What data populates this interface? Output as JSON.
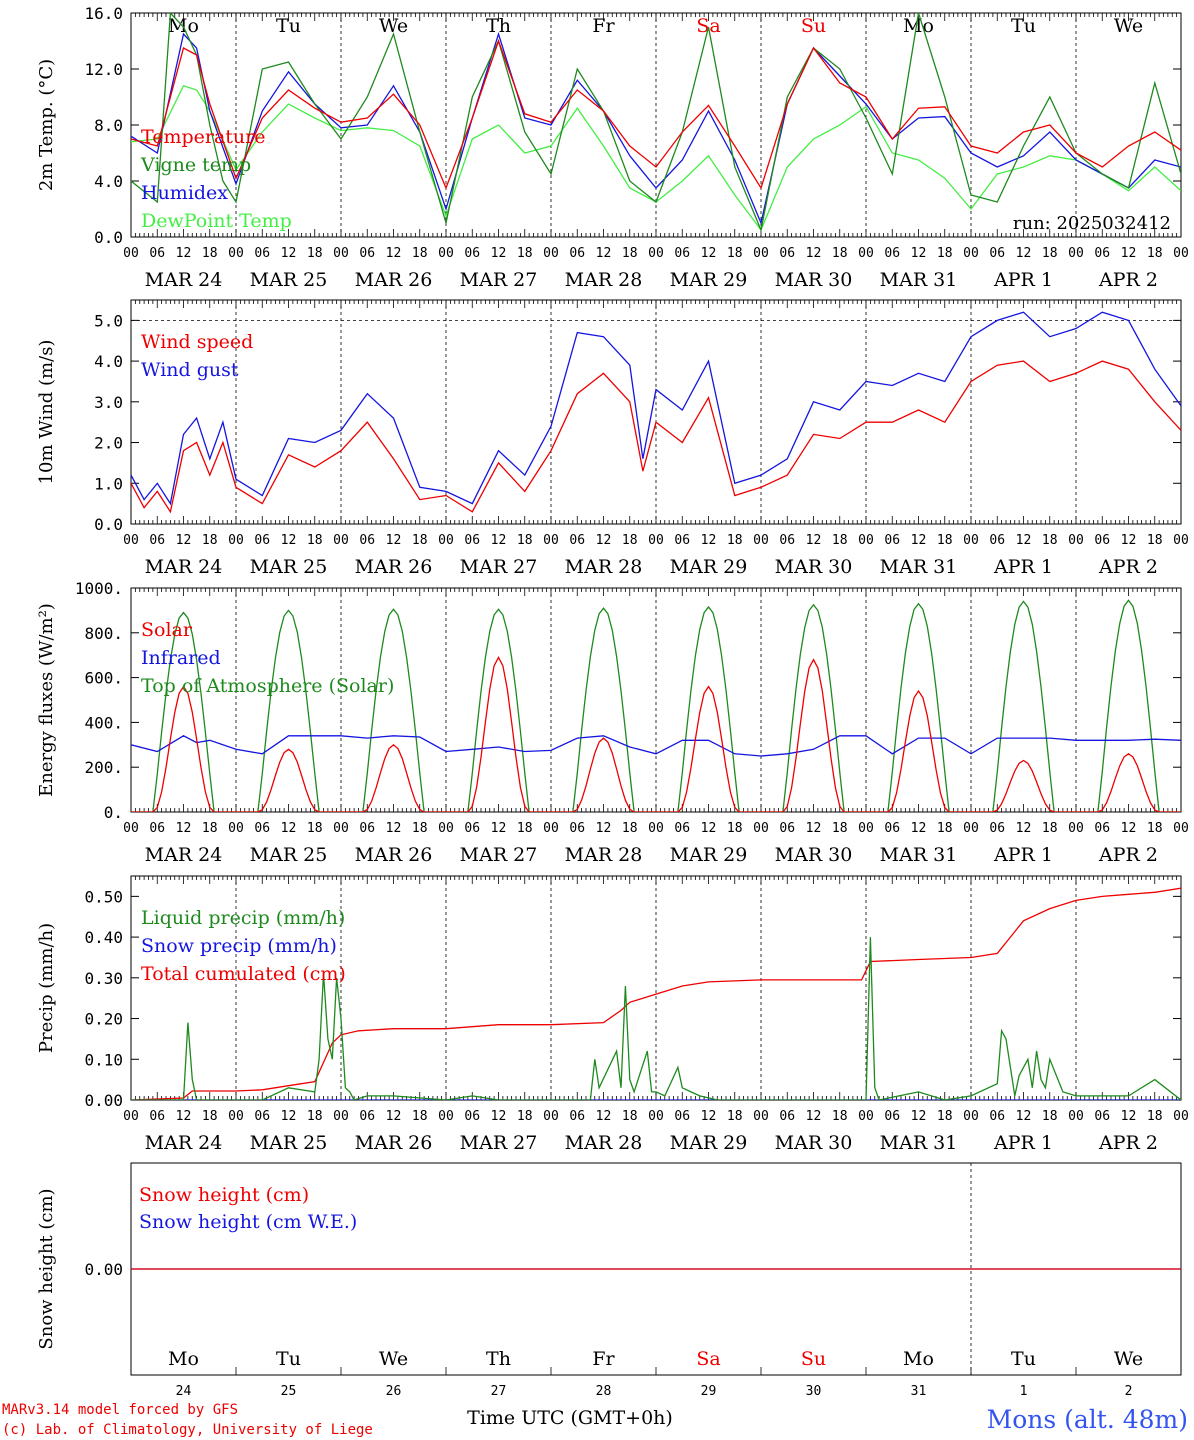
{
  "colors": {
    "red": "#ee0000",
    "darkgreen": "#1e8a1e",
    "blue": "#1515e0",
    "lightgreen": "#44ee44",
    "grid": "#000000",
    "station": "#3355ee"
  },
  "days": [
    {
      "label": "Mo",
      "weekend": false
    },
    {
      "label": "Tu",
      "weekend": false
    },
    {
      "label": "We",
      "weekend": false
    },
    {
      "label": "Th",
      "weekend": false
    },
    {
      "label": "Fr",
      "weekend": false
    },
    {
      "label": "Sa",
      "weekend": true
    },
    {
      "label": "Su",
      "weekend": true
    },
    {
      "label": "Mo",
      "weekend": false
    },
    {
      "label": "Tu",
      "weekend": false
    },
    {
      "label": "We",
      "weekend": false
    }
  ],
  "dates": [
    "MAR 24",
    "MAR 25",
    "MAR 26",
    "MAR 27",
    "MAR 28",
    "MAR 29",
    "MAR 30",
    "MAR 31",
    "APR  1",
    "APR  2"
  ],
  "date_numbers": [
    "24",
    "25",
    "26",
    "27",
    "28",
    "29",
    "30",
    "31",
    "1",
    "2"
  ],
  "hour_labels": [
    "00",
    "06",
    "12",
    "18"
  ],
  "footer": {
    "credit1": "MARv3.14 model forced by GFS",
    "credit2": "(c) Lab. of Climatology, University of Liege",
    "xlabel": "Time UTC (GMT+0h)",
    "station": "Mons (alt. 48m)"
  },
  "chart_data": [
    {
      "id": "temp",
      "type": "line",
      "ylabel": "2m Temp. (°C)",
      "ylim": [
        0,
        16
      ],
      "yticks": [
        "0.0",
        "4.0",
        "8.0",
        "12.0",
        "16.0"
      ],
      "ytick_values": [
        0,
        4,
        8,
        12,
        16
      ],
      "annotation": "run: 2025032412",
      "show_days": true,
      "x_unit": "hours since MAR 24 00 UTC",
      "series": [
        {
          "name": "Temperature",
          "color": "red",
          "x": [
            0,
            6,
            12,
            15,
            18,
            24,
            30,
            36,
            42,
            48,
            54,
            60,
            66,
            72,
            78,
            84,
            90,
            96,
            102,
            108,
            114,
            120,
            126,
            132,
            138,
            144,
            150,
            156,
            162,
            168,
            174,
            180,
            186,
            192,
            198,
            204,
            210,
            216,
            222,
            228,
            234,
            240
          ],
          "y": [
            7.0,
            6.5,
            13.5,
            13.0,
            9.5,
            4.2,
            8.5,
            10.5,
            9.2,
            8.2,
            8.5,
            10.2,
            8.0,
            3.5,
            8.5,
            14.0,
            8.8,
            8.2,
            10.5,
            9.0,
            6.5,
            5.0,
            7.5,
            9.4,
            6.5,
            3.5,
            9.5,
            13.5,
            11.0,
            10.0,
            7.0,
            9.2,
            9.3,
            6.5,
            6.0,
            7.5,
            8.0,
            6.0,
            5.0,
            6.5,
            7.5,
            6.2
          ]
        },
        {
          "name": "Vigne temp",
          "color": "darkgreen",
          "x": [
            0,
            6,
            9,
            12,
            15,
            18,
            21,
            24,
            30,
            36,
            42,
            48,
            54,
            60,
            66,
            72,
            78,
            84,
            90,
            96,
            102,
            108,
            114,
            120,
            126,
            132,
            138,
            144,
            150,
            156,
            162,
            168,
            174,
            180,
            186,
            192,
            198,
            204,
            210,
            216,
            222,
            228,
            234,
            240
          ],
          "y": [
            4.0,
            2.5,
            16.0,
            15.0,
            13.0,
            8.0,
            4.0,
            2.5,
            12.0,
            12.5,
            9.5,
            7.0,
            10.0,
            14.5,
            7.5,
            1.0,
            10.0,
            14.0,
            7.5,
            4.5,
            12.0,
            9.0,
            4.0,
            2.5,
            7.5,
            15.0,
            5.0,
            0.5,
            10.0,
            13.5,
            12.0,
            8.5,
            4.5,
            16.0,
            10.0,
            3.0,
            2.5,
            6.5,
            10.0,
            6.0,
            4.5,
            3.5,
            11.0,
            4.5
          ]
        },
        {
          "name": "Humidex",
          "color": "blue",
          "x": [
            0,
            6,
            12,
            15,
            18,
            24,
            30,
            36,
            42,
            48,
            54,
            60,
            66,
            72,
            78,
            84,
            90,
            96,
            102,
            108,
            114,
            120,
            126,
            132,
            138,
            144,
            150,
            156,
            162,
            168,
            174,
            180,
            186,
            192,
            198,
            204,
            210,
            216,
            222,
            228,
            234,
            240
          ],
          "y": [
            7.2,
            6.0,
            14.5,
            13.5,
            9.0,
            3.8,
            9.0,
            11.8,
            9.5,
            7.8,
            8.0,
            10.8,
            7.5,
            2.0,
            8.5,
            14.5,
            8.5,
            8.0,
            11.2,
            9.0,
            5.8,
            3.5,
            5.5,
            9.0,
            5.5,
            1.0,
            9.5,
            13.5,
            11.5,
            9.5,
            7.0,
            8.5,
            8.6,
            6.0,
            5.0,
            5.8,
            7.5,
            5.5,
            4.5,
            3.5,
            5.5,
            5.0
          ]
        },
        {
          "name": "DewPoint Temp",
          "color": "lightgreen",
          "x": [
            0,
            6,
            12,
            15,
            18,
            24,
            30,
            36,
            42,
            48,
            54,
            60,
            66,
            72,
            78,
            84,
            90,
            96,
            102,
            108,
            114,
            120,
            126,
            132,
            138,
            144,
            150,
            156,
            162,
            168,
            174,
            180,
            186,
            192,
            198,
            204,
            210,
            216,
            222,
            228,
            234,
            240
          ],
          "y": [
            6.8,
            7.0,
            10.8,
            10.5,
            9.0,
            4.8,
            7.5,
            9.5,
            8.5,
            7.6,
            7.8,
            7.6,
            6.5,
            1.5,
            7.0,
            8.0,
            6.0,
            6.5,
            9.2,
            6.5,
            3.5,
            2.5,
            4.0,
            5.8,
            3.0,
            0.5,
            5.0,
            7.0,
            8.0,
            9.3,
            6.0,
            5.5,
            4.2,
            2.0,
            4.5,
            5.0,
            5.8,
            5.5,
            4.5,
            3.3,
            5.0,
            3.3
          ]
        }
      ]
    },
    {
      "id": "wind",
      "type": "line",
      "ylabel": "10m Wind (m/s)",
      "ylim": [
        0,
        5.5
      ],
      "yticks": [
        "0.0",
        "1.0",
        "2.0",
        "3.0",
        "4.0",
        "5.0"
      ],
      "ytick_values": [
        0,
        1,
        2,
        3,
        4,
        5
      ],
      "dashed_at": 5.0,
      "series": [
        {
          "name": "Wind speed",
          "color": "red",
          "x": [
            0,
            3,
            6,
            9,
            12,
            15,
            18,
            21,
            24,
            30,
            36,
            42,
            48,
            54,
            60,
            66,
            72,
            78,
            84,
            90,
            96,
            102,
            108,
            114,
            117,
            120,
            126,
            132,
            138,
            144,
            150,
            156,
            162,
            168,
            174,
            180,
            186,
            192,
            198,
            204,
            210,
            216,
            222,
            228,
            234,
            240
          ],
          "y": [
            1.0,
            0.4,
            0.8,
            0.3,
            1.8,
            2.0,
            1.2,
            2.0,
            0.9,
            0.5,
            1.7,
            1.4,
            1.8,
            2.5,
            1.6,
            0.6,
            0.7,
            0.3,
            1.5,
            0.8,
            1.8,
            3.2,
            3.7,
            3.0,
            1.3,
            2.5,
            2.0,
            3.1,
            0.7,
            0.9,
            1.2,
            2.2,
            2.1,
            2.5,
            2.5,
            2.8,
            2.5,
            3.5,
            3.9,
            4.0,
            3.5,
            3.7,
            4.0,
            3.8,
            3.0,
            2.3
          ]
        },
        {
          "name": "Wind gust",
          "color": "blue",
          "x": [
            0,
            3,
            6,
            9,
            12,
            15,
            18,
            21,
            24,
            30,
            36,
            42,
            48,
            54,
            60,
            66,
            72,
            78,
            84,
            90,
            96,
            102,
            108,
            114,
            117,
            120,
            126,
            132,
            138,
            144,
            150,
            156,
            162,
            168,
            174,
            180,
            186,
            192,
            198,
            204,
            210,
            216,
            222,
            228,
            234,
            240
          ],
          "y": [
            1.2,
            0.6,
            1.0,
            0.5,
            2.2,
            2.6,
            1.6,
            2.5,
            1.1,
            0.7,
            2.1,
            2.0,
            2.3,
            3.2,
            2.6,
            0.9,
            0.8,
            0.5,
            1.8,
            1.2,
            2.4,
            4.7,
            4.6,
            3.9,
            1.6,
            3.3,
            2.8,
            4.0,
            1.0,
            1.2,
            1.6,
            3.0,
            2.8,
            3.5,
            3.4,
            3.7,
            3.5,
            4.6,
            5.0,
            5.2,
            4.6,
            4.8,
            5.2,
            5.0,
            3.8,
            2.9
          ]
        }
      ]
    },
    {
      "id": "energy",
      "type": "line",
      "ylabel": "Energy fluxes (W/m²)",
      "ylim": [
        0,
        1000
      ],
      "yticks": [
        "0.",
        "200.",
        "400.",
        "600.",
        "800.",
        "1000."
      ],
      "ytick_values": [
        0,
        200,
        400,
        600,
        800,
        1000
      ],
      "toa_peaks": [
        890,
        900,
        905,
        905,
        910,
        915,
        925,
        930,
        940,
        945
      ],
      "solar_peaks": [
        560,
        280,
        300,
        690,
        330,
        560,
        680,
        540,
        230,
        260
      ],
      "series": [
        {
          "name": "Solar",
          "color": "red",
          "daily_peaks": "solar_peaks"
        },
        {
          "name": "Infrared",
          "color": "blue",
          "x": [
            0,
            6,
            12,
            15,
            18,
            24,
            30,
            36,
            42,
            48,
            54,
            60,
            66,
            72,
            78,
            84,
            90,
            96,
            102,
            108,
            114,
            120,
            126,
            132,
            138,
            144,
            150,
            156,
            162,
            168,
            174,
            180,
            186,
            192,
            198,
            204,
            210,
            216,
            222,
            228,
            234,
            240
          ],
          "y": [
            300,
            270,
            340,
            310,
            320,
            280,
            260,
            340,
            340,
            340,
            330,
            340,
            335,
            270,
            280,
            290,
            270,
            275,
            330,
            340,
            290,
            260,
            320,
            320,
            260,
            250,
            260,
            280,
            340,
            340,
            260,
            330,
            330,
            260,
            330,
            330,
            330,
            320,
            320,
            320,
            325,
            320
          ]
        },
        {
          "name": "Top of Atmosphere (Solar)",
          "color": "darkgreen",
          "daily_peaks": "toa_peaks"
        }
      ]
    },
    {
      "id": "precip",
      "type": "line",
      "ylabel": "Precip (mm/h)",
      "ylim": [
        0,
        0.55
      ],
      "yticks": [
        "0.00",
        "0.10",
        "0.20",
        "0.30",
        "0.40",
        "0.50"
      ],
      "ytick_values": [
        0,
        0.1,
        0.2,
        0.3,
        0.4,
        0.5
      ],
      "series": [
        {
          "name": "Liquid precip (mm/h)",
          "color": "darkgreen",
          "x": [
            0,
            12,
            13,
            14,
            15,
            16,
            30,
            36,
            42,
            43,
            44,
            45,
            46,
            47,
            48,
            49,
            50,
            51,
            54,
            60,
            72,
            78,
            84,
            96,
            105,
            106,
            107,
            111,
            112,
            113,
            114,
            115,
            118,
            119,
            120,
            122,
            125,
            126,
            128,
            130,
            134,
            168,
            169,
            170,
            171,
            180,
            186,
            192,
            198,
            199,
            200,
            202,
            203,
            205,
            206,
            207,
            208,
            209,
            210,
            213,
            216,
            228,
            234,
            240
          ],
          "y": [
            0,
            0,
            0.19,
            0.05,
            0,
            0,
            0,
            0.03,
            0.02,
            0.1,
            0.31,
            0.15,
            0.1,
            0.3,
            0.2,
            0.03,
            0.02,
            0,
            0.01,
            0.01,
            0,
            0.01,
            0,
            0,
            0,
            0.1,
            0.03,
            0.12,
            0.03,
            0.28,
            0.05,
            0.02,
            0.12,
            0.02,
            0.02,
            0.01,
            0.08,
            0.03,
            0.02,
            0.01,
            0,
            0,
            0.4,
            0.03,
            0,
            0.02,
            0,
            0.01,
            0.04,
            0.17,
            0.15,
            0.01,
            0.06,
            0.1,
            0.03,
            0.12,
            0.05,
            0.03,
            0.1,
            0.02,
            0.01,
            0.01,
            0.05,
            0
          ]
        },
        {
          "name": "Snow precip (mm/h)",
          "color": "blue",
          "x": [
            0,
            240
          ],
          "y": [
            0,
            0
          ]
        },
        {
          "name": "Total cumulated (cm)",
          "color": "red",
          "x": [
            0,
            12,
            14,
            24,
            30,
            36,
            42,
            46,
            48,
            52,
            60,
            72,
            84,
            96,
            108,
            112,
            114,
            120,
            126,
            132,
            144,
            156,
            167,
            169,
            180,
            192,
            198,
            201,
            204,
            210,
            216,
            222,
            228,
            234,
            240
          ],
          "y": [
            0,
            0.005,
            0.022,
            0.022,
            0.025,
            0.035,
            0.045,
            0.14,
            0.16,
            0.17,
            0.175,
            0.175,
            0.185,
            0.185,
            0.19,
            0.22,
            0.24,
            0.26,
            0.28,
            0.29,
            0.295,
            0.295,
            0.295,
            0.34,
            0.345,
            0.35,
            0.36,
            0.4,
            0.44,
            0.47,
            0.49,
            0.5,
            0.505,
            0.51,
            0.52
          ]
        }
      ]
    },
    {
      "id": "snow",
      "type": "line",
      "ylabel": "Snow height (cm)",
      "ylim": [
        -1,
        1
      ],
      "yticks": [
        "0.00"
      ],
      "ytick_values": [
        0
      ],
      "series": [
        {
          "name": "Snow height (cm)",
          "color": "red",
          "x": [
            0,
            240
          ],
          "y": [
            0,
            0
          ]
        },
        {
          "name": "Snow height (cm W.E.)",
          "color": "blue",
          "x": [
            0,
            240
          ],
          "y": [
            0,
            0
          ]
        }
      ]
    }
  ]
}
